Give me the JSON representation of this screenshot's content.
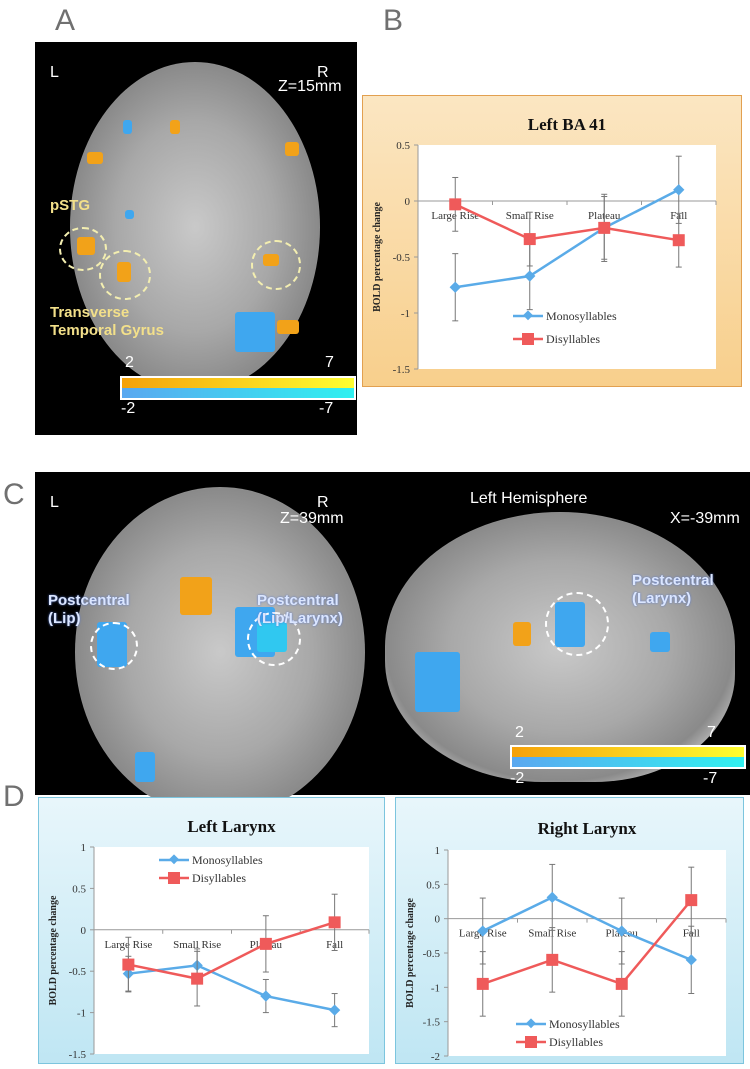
{
  "panels": {
    "a": "A",
    "b": "B",
    "c": "C",
    "d": "D"
  },
  "panel_a": {
    "left": "L",
    "right": "R",
    "slice": "Z=15mm",
    "label1": "pSTG",
    "label2a": "Transverse",
    "label2b": "Temporal Gyrus",
    "cbar": {
      "pos_min": "2",
      "pos_max": "7",
      "neg_min": "-2",
      "neg_max": "-7"
    }
  },
  "panel_c": {
    "left": "L",
    "right": "R",
    "slice": "Z=39mm",
    "hemisphere": "Left  Hemisphere",
    "sag_slice": "X=-39mm",
    "lip1": "Postcentral",
    "lip2": "(Lip)",
    "lip_lar1": "Postcentral",
    "lip_lar2": "(Lip/Larynx)",
    "lar1": "Postcentral",
    "lar2": "(Larynx)",
    "cbar": {
      "pos_min": "2",
      "pos_max": "7",
      "neg_min": "-2",
      "neg_max": "-7"
    }
  },
  "colors": {
    "mono": "#5aabe8",
    "di": "#ef5a5a"
  },
  "chart_data": [
    {
      "type": "line",
      "title": "Left BA 41",
      "ylabel": "BOLD percentage change",
      "categories": [
        "Large Rise",
        "Small Rise",
        "Plateau",
        "Fall"
      ],
      "ylim": [
        -1.5,
        0.5
      ],
      "yticks": [
        "0.5",
        "0",
        "-0.5",
        "-1",
        "-1.5"
      ],
      "legend": "center-bottom",
      "series": [
        {
          "name": "Monosyllables",
          "values": [
            -0.77,
            -0.67,
            -0.24,
            0.1
          ],
          "errors": [
            0.3,
            0.3,
            0.28,
            0.3
          ]
        },
        {
          "name": "Disyllables",
          "values": [
            -0.03,
            -0.34,
            -0.24,
            -0.35
          ],
          "errors": [
            0.24,
            0.24,
            0.3,
            0.24
          ]
        }
      ]
    },
    {
      "type": "line",
      "title": "Left Larynx",
      "ylabel": "BOLD percentage change",
      "categories": [
        "Large Rise",
        "Small Rise",
        "Plateau",
        "Fall"
      ],
      "ylim": [
        -1.5,
        1
      ],
      "yticks": [
        "1",
        "0.5",
        "0",
        "-0.5",
        "-1",
        "-1.5"
      ],
      "legend": "top-center",
      "series": [
        {
          "name": "Monosyllables",
          "values": [
            -0.53,
            -0.43,
            -0.8,
            -0.97
          ],
          "errors": [
            0.21,
            0.2,
            0.2,
            0.2
          ]
        },
        {
          "name": "Disyllables",
          "values": [
            -0.42,
            -0.59,
            -0.17,
            0.09
          ],
          "errors": [
            0.33,
            0.33,
            0.34,
            0.34
          ]
        }
      ]
    },
    {
      "type": "line",
      "title": "Right Larynx",
      "ylabel": "BOLD percentage change",
      "categories": [
        "Large Rise",
        "Small Rise",
        "Plateau",
        "Fall"
      ],
      "ylim": [
        -2,
        1
      ],
      "yticks": [
        "1",
        "0.5",
        "0",
        "-0.5",
        "-1",
        "-1.5",
        "-2"
      ],
      "legend": "bottom-center",
      "series": [
        {
          "name": "Monosyllables",
          "values": [
            -0.18,
            0.31,
            -0.18,
            -0.6
          ],
          "errors": [
            0.48,
            0.48,
            0.48,
            0.49
          ]
        },
        {
          "name": "Disyllables",
          "values": [
            -0.95,
            -0.6,
            -0.95,
            0.27
          ],
          "errors": [
            0.47,
            0.47,
            0.47,
            0.48
          ]
        }
      ]
    }
  ]
}
